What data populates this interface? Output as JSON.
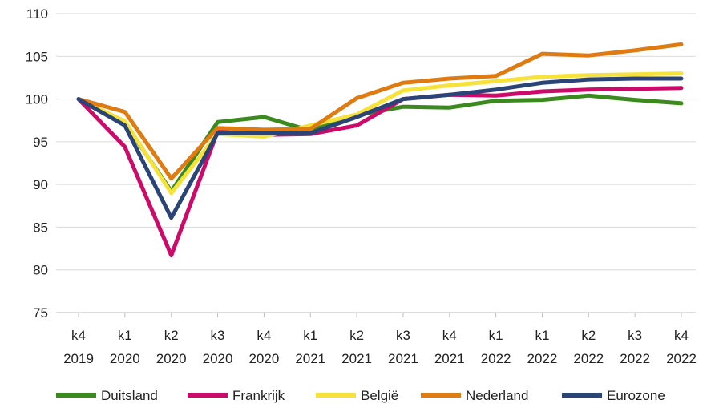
{
  "chart_data": {
    "type": "line",
    "title": "",
    "xlabel": "",
    "ylabel": "",
    "ylim": [
      75,
      110
    ],
    "yticks": [
      75,
      80,
      85,
      90,
      95,
      100,
      105,
      110
    ],
    "grid": "horizontal",
    "legend_position": "bottom",
    "categories": [
      {
        "q": "k4",
        "y": "2019"
      },
      {
        "q": "k1",
        "y": "2020"
      },
      {
        "q": "k2",
        "y": "2020"
      },
      {
        "q": "k3",
        "y": "2020"
      },
      {
        "q": "k4",
        "y": "2020"
      },
      {
        "q": "k1",
        "y": "2021"
      },
      {
        "q": "k2",
        "y": "2021"
      },
      {
        "q": "k3",
        "y": "2021"
      },
      {
        "q": "k4",
        "y": "2021"
      },
      {
        "q": "k1",
        "y": "2022"
      },
      {
        "q": "k1",
        "y": "2022"
      },
      {
        "q": "k2",
        "y": "2022"
      },
      {
        "q": "k3",
        "y": "2022"
      },
      {
        "q": "k4",
        "y": "2022"
      }
    ],
    "series": [
      {
        "name": "Duitsland",
        "color": "#3a8a1e",
        "values": [
          100,
          97.2,
          89.2,
          97.3,
          97.9,
          96.3,
          98.1,
          99.1,
          99.0,
          99.8,
          99.9,
          100.4,
          99.9,
          99.5
        ]
      },
      {
        "name": "Frankrijk",
        "color": "#cc0a6a",
        "values": [
          100,
          94.4,
          81.7,
          96.2,
          95.8,
          95.9,
          96.9,
          100.0,
          100.5,
          100.4,
          100.9,
          101.1,
          101.2,
          101.3
        ]
      },
      {
        "name": "België",
        "color": "#f7e23a",
        "values": [
          100,
          97.4,
          89.0,
          95.9,
          95.6,
          96.9,
          98.2,
          101.0,
          101.6,
          102.1,
          102.6,
          102.8,
          102.9,
          103.0
        ]
      },
      {
        "name": "Nederland",
        "color": "#e07b12",
        "values": [
          100,
          98.5,
          90.7,
          96.6,
          96.4,
          96.5,
          100.1,
          101.9,
          102.4,
          102.7,
          105.3,
          105.1,
          105.7,
          106.4
        ]
      },
      {
        "name": "Eurozone",
        "color": "#2a4478",
        "values": [
          100,
          96.9,
          86.1,
          96.0,
          96.0,
          96.0,
          97.9,
          100.0,
          100.5,
          101.1,
          101.9,
          102.3,
          102.4,
          102.4
        ]
      }
    ]
  }
}
